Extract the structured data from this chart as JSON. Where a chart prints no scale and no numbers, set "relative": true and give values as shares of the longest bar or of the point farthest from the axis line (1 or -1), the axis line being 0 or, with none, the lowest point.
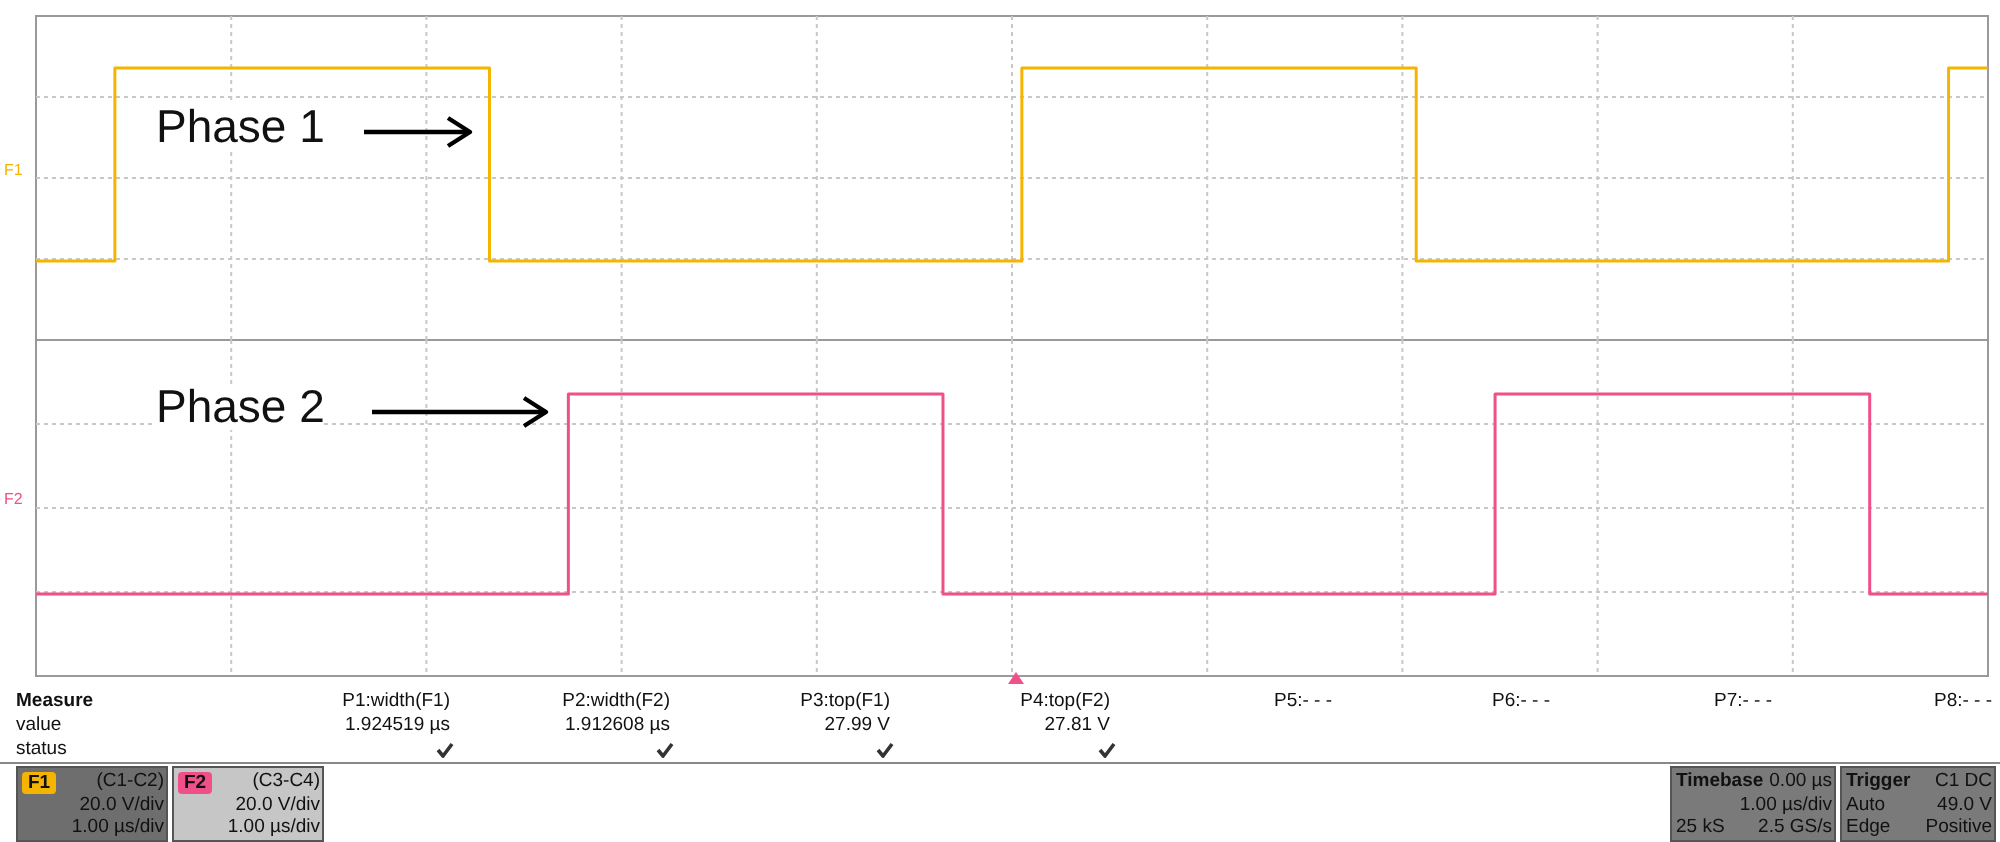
{
  "chart_data": [
    {
      "type": "step",
      "relative": true,
      "grid": true,
      "categories": [
        null,
        null,
        null,
        null,
        null,
        null,
        null,
        null,
        null,
        null,
        null,
        null,
        null,
        null,
        null,
        null,
        null,
        null,
        null,
        null,
        null,
        null,
        null,
        null,
        null,
        null,
        null,
        null,
        null,
        null,
        null,
        null,
        null,
        null,
        null,
        null,
        null,
        null,
        null,
        null,
        null,
        null,
        null,
        null,
        null,
        null,
        null,
        null,
        null,
        null,
        null,
        null,
        null,
        null,
        null,
        null,
        null,
        null,
        null,
        null,
        null,
        null,
        null,
        null,
        null,
        null,
        null,
        null,
        null,
        null,
        null,
        null,
        null,
        null,
        null,
        null,
        null,
        null,
        null,
        null,
        null,
        null,
        null,
        null,
        null,
        null,
        null,
        null,
        null,
        null,
        null,
        null,
        null,
        null,
        null,
        null,
        null,
        null,
        null,
        null
      ],
      "series": [
        {
          "name": "F1",
          "color": "#f5b400",
          "values": [
            0,
            0,
            0,
            0,
            1,
            1,
            1,
            1,
            1,
            1,
            1,
            1,
            1,
            1,
            1,
            1,
            1,
            1,
            1,
            1,
            1,
            1,
            1,
            0,
            0,
            0,
            0,
            0,
            0,
            0,
            0,
            0,
            0,
            0,
            0,
            0,
            0,
            0,
            0,
            0,
            0,
            0,
            0,
            0,
            0,
            0,
            0,
            0,
            0,
            0,
            1,
            1,
            1,
            1,
            1,
            1,
            1,
            1,
            1,
            1,
            1,
            1,
            1,
            1,
            1,
            1,
            1,
            1,
            1,
            1,
            0,
            0,
            0,
            0,
            0,
            0,
            0,
            0,
            0,
            0,
            0,
            0,
            0,
            0,
            0,
            0,
            0,
            0,
            0,
            0,
            0,
            0,
            0,
            0,
            0,
            0,
            0,
            1,
            1,
            1
          ]
        }
      ],
      "annotations": [
        "Phase 1"
      ]
    },
    {
      "type": "step",
      "relative": true,
      "grid": true,
      "categories": [
        null,
        null,
        null,
        null,
        null,
        null,
        null,
        null,
        null,
        null,
        null,
        null,
        null,
        null,
        null,
        null,
        null,
        null,
        null,
        null,
        null,
        null,
        null,
        null,
        null,
        null,
        null,
        null,
        null,
        null,
        null,
        null,
        null,
        null,
        null,
        null,
        null,
        null,
        null,
        null,
        null,
        null,
        null,
        null,
        null,
        null,
        null,
        null,
        null,
        null,
        null,
        null,
        null,
        null,
        null,
        null,
        null,
        null,
        null,
        null,
        null,
        null,
        null,
        null,
        null,
        null,
        null,
        null,
        null,
        null,
        null,
        null,
        null,
        null,
        null,
        null,
        null,
        null,
        null,
        null,
        null,
        null,
        null,
        null,
        null,
        null,
        null,
        null,
        null,
        null,
        null,
        null,
        null,
        null,
        null,
        null,
        null,
        null,
        null,
        null
      ],
      "series": [
        {
          "name": "F2",
          "color": "#f0508a",
          "values": [
            0,
            0,
            0,
            0,
            0,
            0,
            0,
            0,
            0,
            0,
            0,
            0,
            0,
            0,
            0,
            0,
            0,
            0,
            0,
            0,
            0,
            0,
            0,
            0,
            0,
            0,
            0,
            1,
            1,
            1,
            1,
            1,
            1,
            1,
            1,
            1,
            1,
            1,
            1,
            1,
            1,
            1,
            1,
            1,
            1,
            1,
            0,
            0,
            0,
            0,
            0,
            0,
            0,
            0,
            0,
            0,
            0,
            0,
            0,
            0,
            0,
            0,
            0,
            0,
            0,
            0,
            0,
            0,
            0,
            0,
            0,
            0,
            0,
            0,
            1,
            1,
            1,
            1,
            1,
            1,
            1,
            1,
            1,
            1,
            1,
            1,
            1,
            1,
            1,
            1,
            1,
            1,
            1,
            0,
            0,
            0,
            0,
            0,
            0,
            0
          ]
        }
      ],
      "annotations": [
        "Phase 2",
        "Measure",
        "value",
        "status",
        "P1:width(F1)",
        "1.924519 µs",
        "P2:width(F2)",
        "1.912608 µs",
        "P3:top(F1)",
        "27.99 V",
        "P4:top(F2)",
        "27.81 V",
        "P5:- - -",
        "P6:- - -",
        "P7:- - -",
        "P8:- - -",
        "(C1-C2)",
        "20.0 V/div",
        "1.00 µs/div",
        "(C3-C4)",
        "20.0 V/div",
        "1.00 µs/div",
        "Timebase",
        "0.00 µs",
        "1.00 µs/div",
        "25 kS",
        "2.5 GS/s",
        "Trigger",
        "C1 DC",
        "Auto",
        "49.0 V",
        "Edge",
        "Positive"
      ]
    }
  ]
}
